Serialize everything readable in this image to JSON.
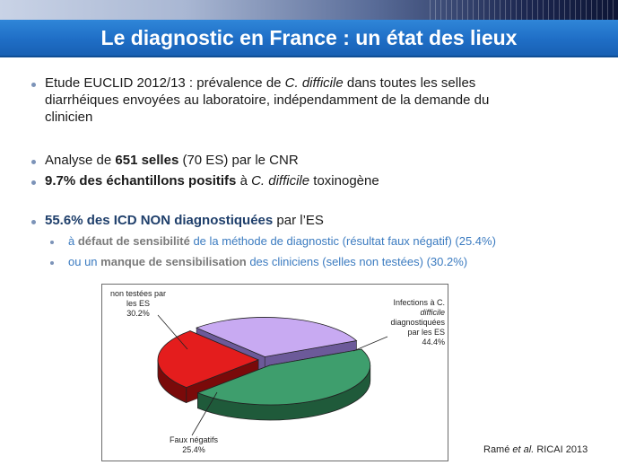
{
  "slide": {
    "title": "Le diagnostic en France : un état des lieux",
    "bullets": [
      {
        "pre": "Etude  EUCLID 2012/13 : prévalence de ",
        "em": "C. difficile",
        "line1_post": " dans toutes les selles",
        "line2": "diarrhéiques envoyées au laboratoire, indépendamment de la demande du",
        "line3": "clinicien"
      },
      {
        "pre": "Analyse de ",
        "strong": "651 selles",
        "post": " (70 ES) par le CNR"
      },
      {
        "strong1": "9.7%  des échantillons positifs",
        "mid": " à ",
        "em": "C. difficile",
        "post": " toxinogène"
      },
      {
        "strong": "55.6%  des ICD NON diagnostiquées",
        "post": " par l’ES"
      }
    ],
    "subbullets": [
      {
        "pre": "à ",
        "strong": "défaut de sensibilité",
        "post": " de la méthode de diagnostic  (résultat faux négatif) (25.4%)"
      },
      {
        "pre": "ou un ",
        "strong": "manque de sensibilisation",
        "post": " des cliniciens (selles non testées) (30.2%)"
      }
    ],
    "reference": {
      "author": "Ramé ",
      "em": "et al.",
      "post": " RICAI 2013"
    },
    "colors": {
      "title_bar": "#1f6ec6",
      "sub_text": "#3b7bc0",
      "slice_diagnosed": "#3a9a6a",
      "slice_false_neg": "#e01c1c",
      "slice_untested": "#c8a8f0"
    }
  },
  "chart_data": {
    "type": "pie",
    "categories": [
      "Infections à C. difficile diagnostiquées par les ES",
      "Faux négatifs",
      "non testées par les ES"
    ],
    "values": [
      44.4,
      25.4,
      30.2
    ],
    "title": "",
    "labels": {
      "diagnosed": [
        "Infections à C.",
        "difficile",
        "diagnostiquées",
        "par les ES",
        "44.4%"
      ],
      "false_neg": [
        "Faux négatifs",
        "25.4%"
      ],
      "untested": [
        "non testées par",
        "les ES",
        "30.2%"
      ]
    },
    "legend": "none"
  }
}
